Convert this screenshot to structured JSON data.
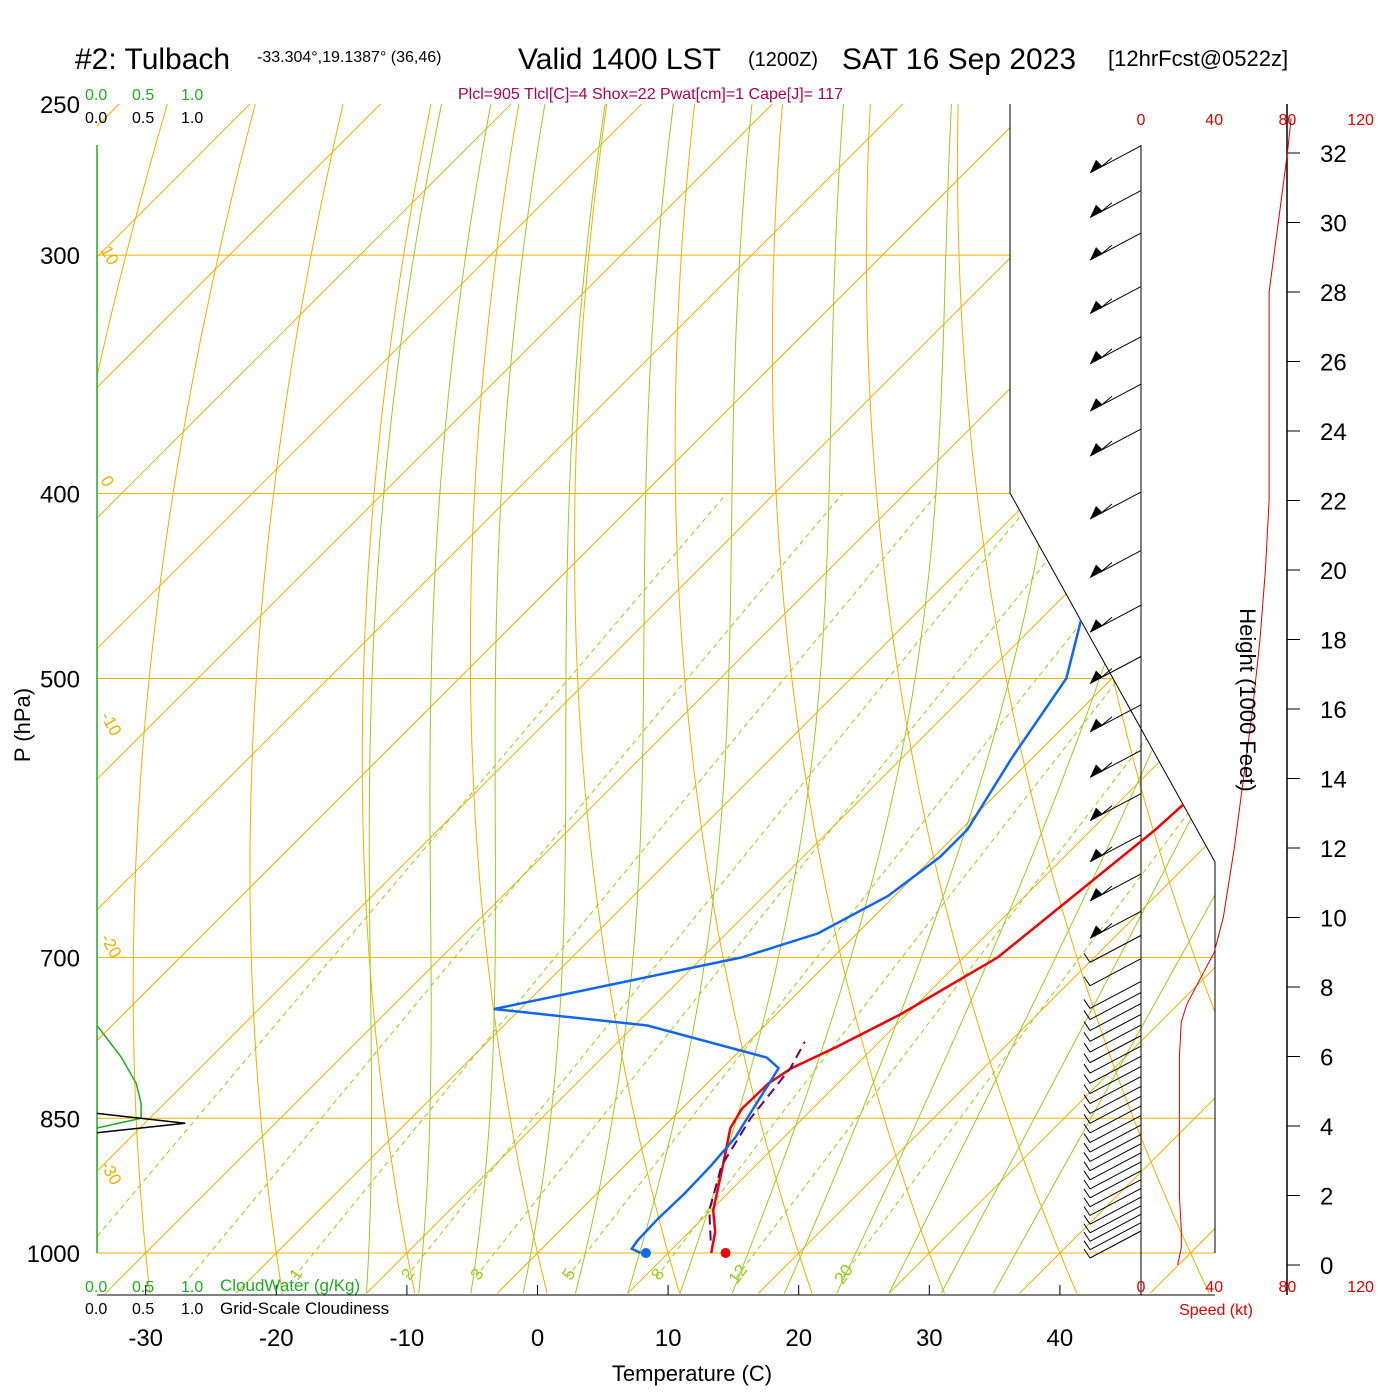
{
  "header": {
    "station": "#2: Tulbach",
    "coords": "-33.304°,19.1387° (36,46)",
    "valid": "Valid 1400 LST",
    "utc": "(1200Z)",
    "date": "SAT 16 Sep 2023",
    "forecast": "[12hrFcst@0522z]",
    "indices": "Plcl=905 Tlcl[C]=4 Shox=22 Pwat[cm]=1 Cape[J]= 117"
  },
  "labels": {
    "ylabel": "P (hPa)",
    "xlabel": "Temperature (C)",
    "height_label": "Height (1000 Feet)",
    "speed_label": "Speed (kt)",
    "cloudwater_label": "CloudWater (g/Kg)",
    "cloudiness_label": "Grid-Scale Cloudiness",
    "cw_scale": [
      "0.0",
      "0.5",
      "1.0"
    ],
    "cl_scale": [
      "0.0",
      "0.5",
      "1.0"
    ]
  },
  "colors": {
    "temperature": "#ee0000",
    "dewpoint": "#1166ee",
    "parcel": "#660066",
    "isotherm": "#f0b000",
    "dry_adiabat": "#f0b000",
    "moist_adiabat": "#99cc22",
    "mixing_ratio": "#99cc22",
    "cloudwater": "#22aa22",
    "wind_speed": "#dd0000"
  },
  "chart_data": {
    "type": "line",
    "title": "#2: Tulbach Valid 1400 LST (1200Z) SAT 16 Sep 2023",
    "xlabel": "Temperature (C)",
    "ylabel": "P (hPa)",
    "x_ticks": [
      -30,
      -20,
      -10,
      0,
      10,
      20,
      30,
      40
    ],
    "y_ticks": [
      250,
      300,
      400,
      500,
      700,
      850,
      1000
    ],
    "ylim": [
      250,
      1000
    ],
    "y_scale": "log",
    "isotherm_labels": [
      10,
      0,
      -10,
      -20,
      -30,
      0,
      10,
      20,
      30
    ],
    "mixing_ratio_labels": [
      1,
      2,
      3,
      5,
      8,
      12,
      20
    ],
    "temperature": {
      "p": [
        1000,
        975,
        950,
        900,
        860,
        840,
        815,
        800,
        780,
        750,
        700,
        650,
        600,
        550,
        500,
        470,
        430,
        400,
        350,
        300,
        270,
        260
      ],
      "t": [
        13.3,
        12.0,
        10.2,
        7.5,
        5.2,
        4.6,
        4.7,
        5.3,
        7.1,
        9.5,
        12.6,
        13.7,
        14.9,
        15.5,
        15.5,
        15.5,
        13.3,
        11.0,
        7.0,
        2.4,
        -1.0,
        -2.1
      ]
    },
    "dewpoint": {
      "p": [
        1000,
        995,
        985,
        960,
        930,
        900,
        870,
        845,
        820,
        800,
        790,
        760,
        745,
        700,
        680,
        650,
        620,
        600,
        550,
        500,
        450,
        400,
        350,
        330,
        300,
        280,
        260
      ],
      "t": [
        7.9,
        6.9,
        6.7,
        6.6,
        6.7,
        6.6,
        6.3,
        5.6,
        4.9,
        4.3,
        2.6,
        -9.0,
        -22.0,
        -7.0,
        -3.0,
        -0.5,
        0.5,
        0.5,
        -1.6,
        -3.5,
        -8.5,
        -12.5,
        -17.5,
        -18.5,
        -18.0,
        -16.0,
        -13.0
      ]
    },
    "parcel": {
      "p": [
        985,
        950,
        900,
        850,
        800,
        775
      ],
      "t": [
        12.3,
        9.9,
        7.4,
        6.0,
        5.2,
        4.3
      ]
    },
    "surface": {
      "temperature": 14.4,
      "dewpoint": 8.3,
      "p": 1000
    },
    "wind_speed": {
      "height_kft": [
        0,
        0.5,
        1,
        2,
        4,
        6,
        7,
        7.5,
        8,
        9,
        10,
        12,
        14,
        16,
        18,
        20,
        22,
        24,
        26,
        28,
        30,
        32,
        33
      ],
      "kt": [
        20,
        22,
        22,
        21,
        21,
        21,
        22,
        25,
        30,
        40,
        45,
        51,
        56,
        61,
        65,
        68,
        70,
        70,
        70,
        70,
        75,
        80,
        82
      ]
    },
    "height_ticks": [
      0,
      2,
      4,
      6,
      8,
      10,
      12,
      14,
      16,
      18,
      20,
      22,
      24,
      26,
      28,
      30,
      32
    ],
    "speed_ticks": [
      0,
      40,
      80,
      120
    ],
    "cloudwater": {
      "p": [
        760,
        790,
        815,
        835,
        850,
        860,
        900
      ],
      "value": [
        0.0,
        0.25,
        0.4,
        0.45,
        0.45,
        0.0,
        0.0
      ]
    },
    "cloudiness": {
      "p": [
        845,
        855,
        865
      ],
      "value": [
        0.0,
        0.9,
        0.0
      ]
    }
  }
}
